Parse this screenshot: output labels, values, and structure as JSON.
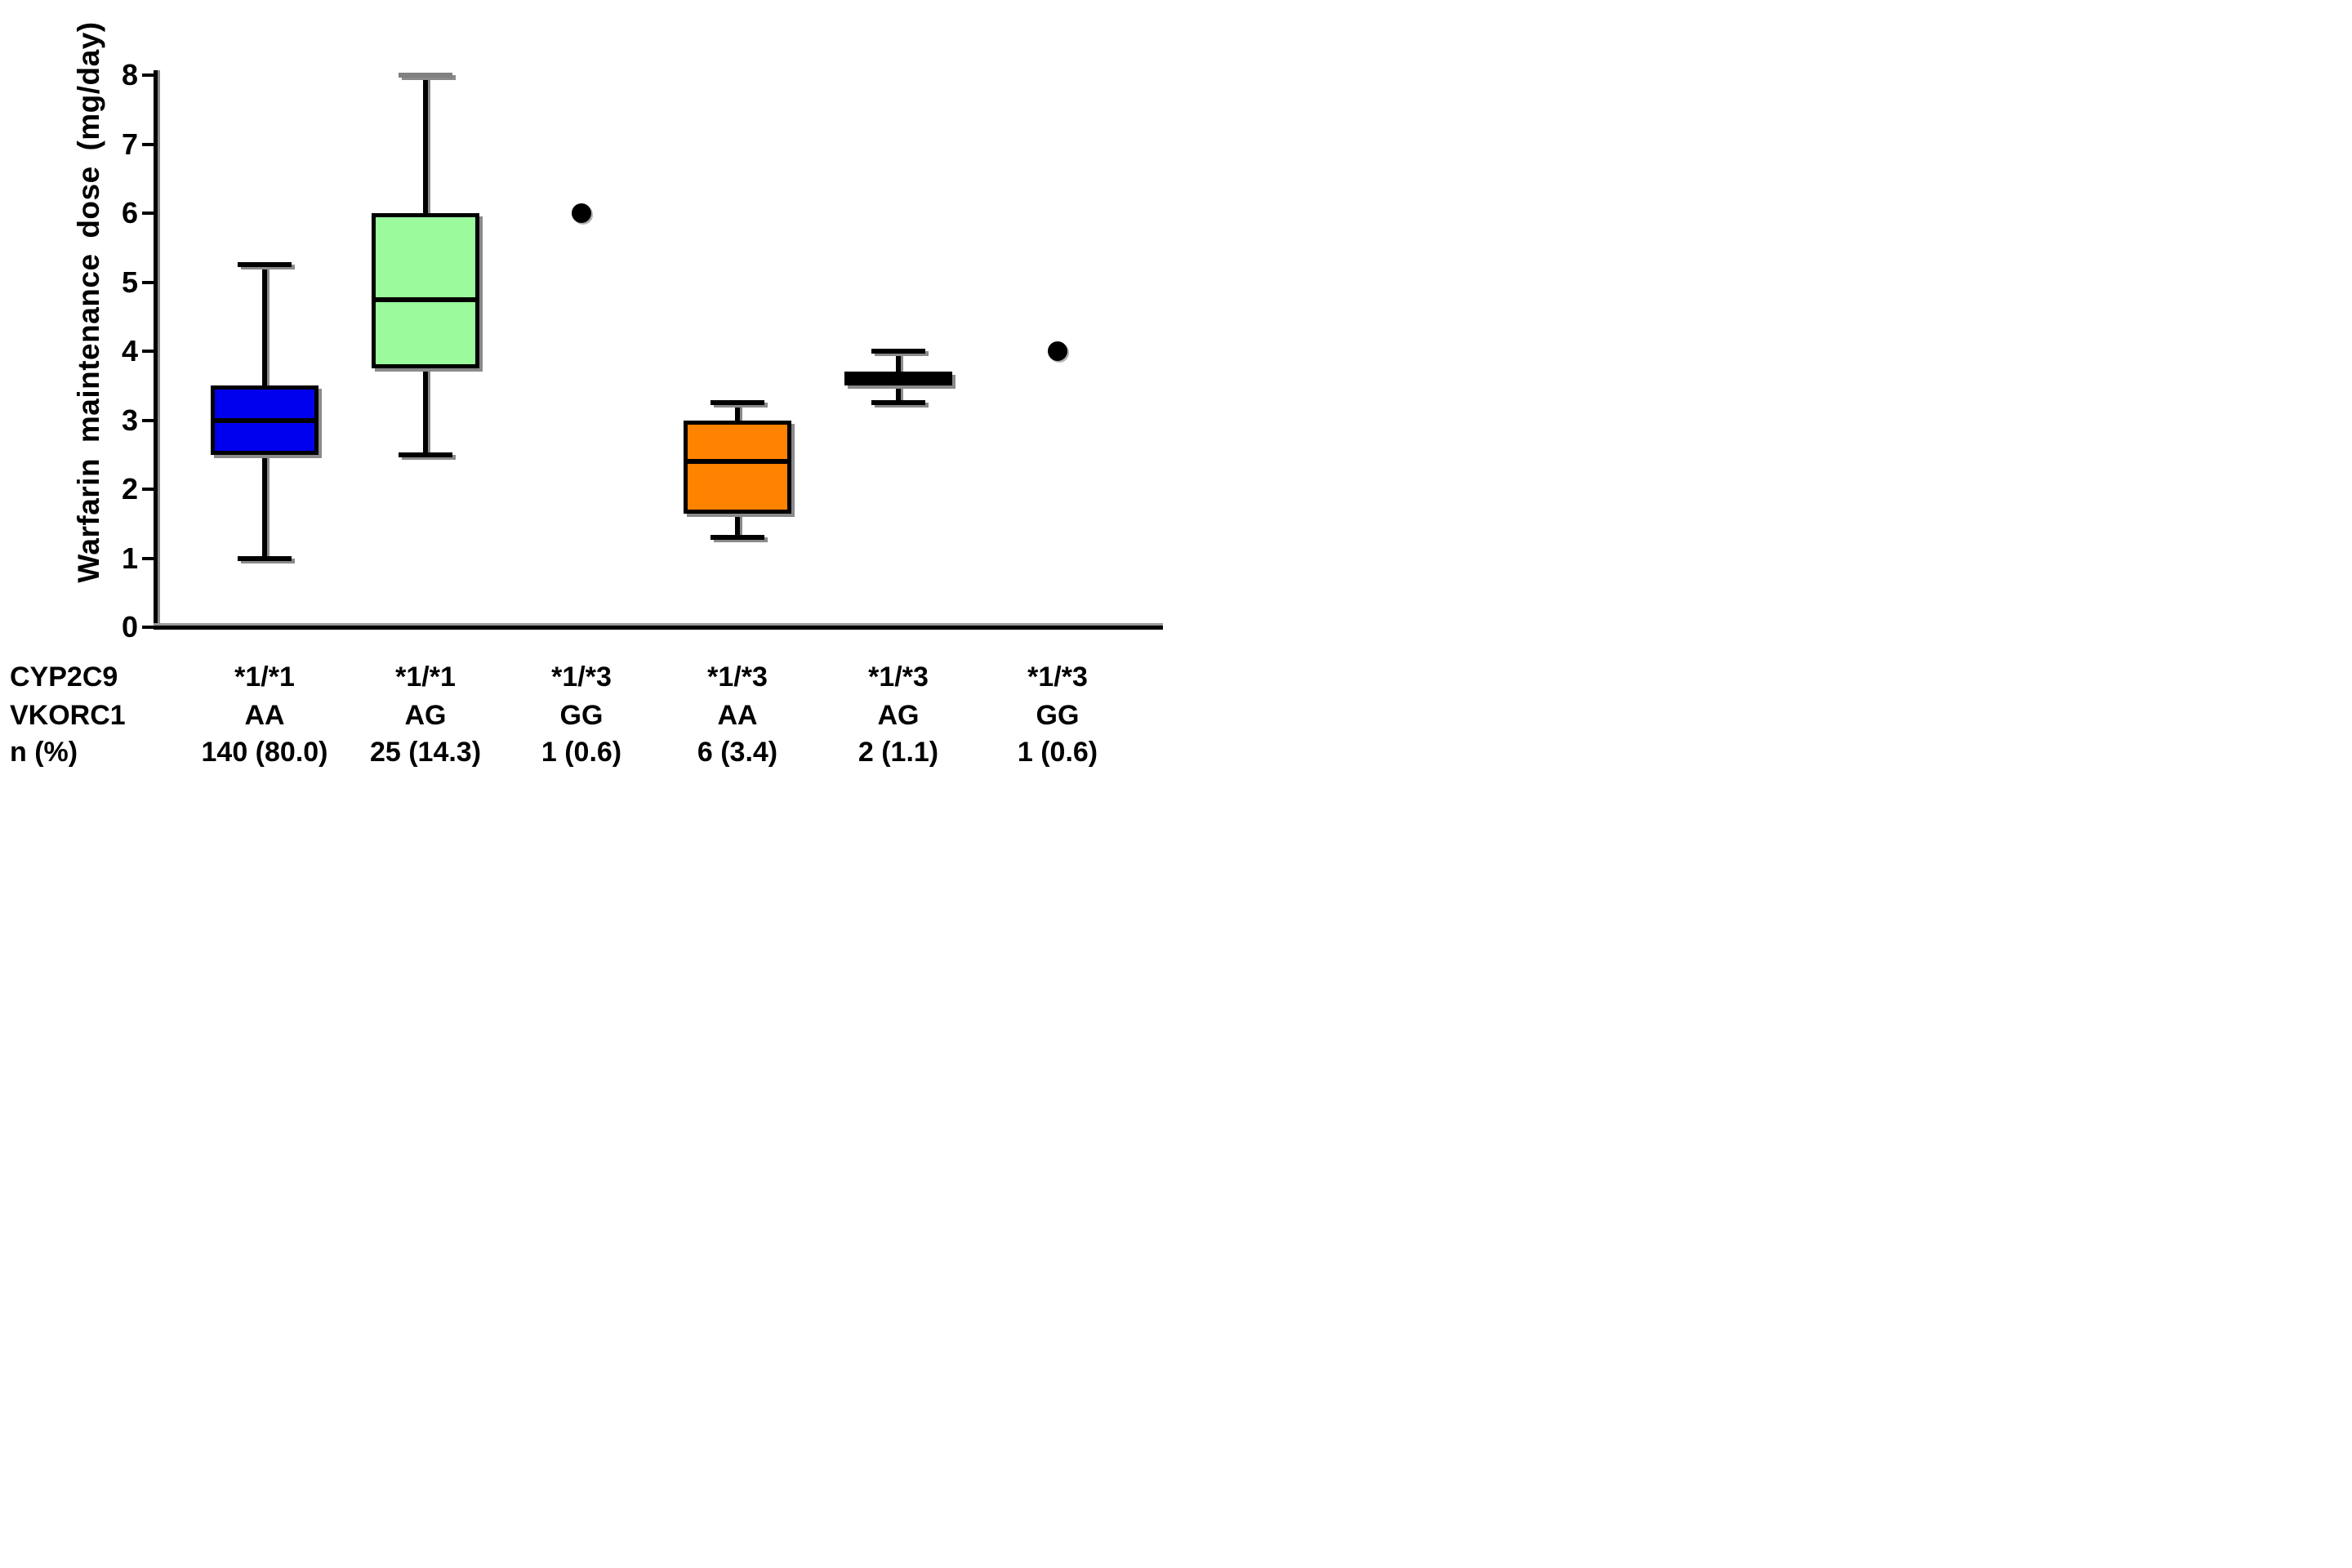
{
  "chart_data": {
    "type": "boxplot",
    "title": "",
    "ylabel": "Warfarin maintenance dose (mg/day)",
    "xlabel": "",
    "ylim": [
      0,
      8
    ],
    "yticks": [
      "0",
      "1",
      "2",
      "3",
      "4",
      "5",
      "6",
      "7",
      "8"
    ],
    "grid": false,
    "legend_position": "none",
    "row_headers": [
      "CYP2C9",
      "VKORC1",
      "n (%)"
    ],
    "groups": [
      {
        "cyp2c9": "*1/*1",
        "vkorc1": "AA",
        "n_pct": "140 (80.0)",
        "kind": "box",
        "color": "#0000EE",
        "min": 1.0,
        "q1": 2.5,
        "median": 3.0,
        "q3": 3.5,
        "max": 5.25
      },
      {
        "cyp2c9": "*1/*1",
        "vkorc1": "AG",
        "n_pct": "25 (14.3)",
        "kind": "box",
        "color": "#9BFA9B",
        "cap_color_max": "#808080",
        "min": 2.5,
        "q1": 3.75,
        "median": 4.75,
        "q3": 6.0,
        "max": 8.0
      },
      {
        "cyp2c9": "*1/*3",
        "vkorc1": "GG",
        "n_pct": "1 (0.6)",
        "kind": "point",
        "value": 6.0
      },
      {
        "cyp2c9": "*1/*3",
        "vkorc1": "AA",
        "n_pct": "6 (3.4)",
        "kind": "box",
        "color": "#FF8300",
        "min": 1.3,
        "q1": 1.65,
        "median": 2.4,
        "q3": 3.0,
        "max": 3.25
      },
      {
        "cyp2c9": "*1/*3",
        "vkorc1": "AG",
        "n_pct": "2 (1.1)",
        "kind": "box",
        "color": "#000000",
        "min": 3.25,
        "q1": 3.5,
        "median": 3.6,
        "q3": 3.7,
        "max": 4.0
      },
      {
        "cyp2c9": "*1/*3",
        "vkorc1": "GG",
        "n_pct": "1 (0.6)",
        "kind": "point",
        "value": 4.0
      }
    ]
  }
}
